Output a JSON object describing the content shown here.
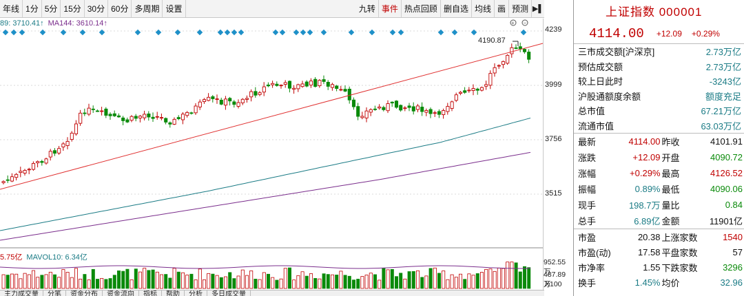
{
  "toolbar": {
    "left": [
      "年线",
      "1分",
      "5分",
      "15分",
      "30分",
      "60分",
      "多周期",
      "设置"
    ],
    "right": [
      "九转",
      "事件",
      "热点回顾",
      "删自选",
      "均线",
      "画",
      "预测"
    ]
  },
  "legend": {
    "ma_a": "89: 3710.41↑",
    "ma144": "MA144: 3610.14↑"
  },
  "volume_legend": {
    "vol": "5.75亿",
    "mavol10": "MAVOL10: 6.34亿"
  },
  "peak_label": "4190.87",
  "price_axis": [
    "4239",
    "3999",
    "3756",
    "3515"
  ],
  "volume_axis": [
    "952.55万",
    "487.89万",
    "X100"
  ],
  "bottom_tabs": [
    "主力成交量",
    "分笔",
    "资金分布",
    "资金流向",
    "指标",
    "帮助",
    "分析",
    "多日成交量"
  ],
  "index": {
    "title": "上证指数 000001",
    "price": "4114.00",
    "change": "+12.09",
    "pct": "+0.29%"
  },
  "turnover": [
    {
      "label": "三市成交额[沪深京]",
      "value": "2.73万亿"
    },
    {
      "label": "预估成交额",
      "value": "2.73万亿"
    },
    {
      "label": "较上日此时",
      "value": "-3243亿"
    },
    {
      "label": "沪股通额度余额",
      "value": "额度充足"
    },
    {
      "label": "总市值",
      "value": "67.21万亿"
    },
    {
      "label": "流通市值",
      "value": "63.03万亿"
    }
  ],
  "quote": [
    {
      "l1": "最新",
      "v1": "4114.00",
      "c1": "red",
      "l2": "昨收",
      "v2": "4101.91",
      "c2": "dark"
    },
    {
      "l1": "涨跌",
      "v1": "+12.09",
      "c1": "red",
      "l2": "开盘",
      "v2": "4090.72",
      "c2": "green"
    },
    {
      "l1": "涨幅",
      "v1": "+0.29%",
      "c1": "red",
      "l2": "最高",
      "v2": "4126.52",
      "c2": "red"
    },
    {
      "l1": "振幅",
      "v1": "0.89%",
      "c1": "teal",
      "l2": "最低",
      "v2": "4090.06",
      "c2": "green"
    },
    {
      "l1": "现手",
      "v1": "198.7万",
      "c1": "teal",
      "l2": "量比",
      "v2": "0.84",
      "c2": "green"
    },
    {
      "l1": "总手",
      "v1": "6.89亿",
      "c1": "teal",
      "l2": "金额",
      "v2": "11901亿",
      "c2": "dark"
    }
  ],
  "stats": [
    {
      "l1": "市盈",
      "v1": "20.38",
      "c1": "dark",
      "l2": "上涨家数",
      "v2": "1540",
      "c2": "red"
    },
    {
      "l1": "市盈(动)",
      "v1": "17.58",
      "c1": "dark",
      "l2": "平盘家数",
      "v2": "57",
      "c2": "dark"
    },
    {
      "l1": "市净率",
      "v1": "1.55",
      "c1": "dark",
      "l2": "下跌家数",
      "v2": "3296",
      "c2": "green"
    },
    {
      "l1": "换手",
      "v1": "1.45%",
      "c1": "teal",
      "l2": "均价",
      "v2": "32.96",
      "c2": "teal"
    }
  ],
  "colors": {
    "up": "#c00000",
    "down": "#0a8a0a",
    "ma_teal": "#1a7b85",
    "ma_purple": "#7a2d8c",
    "event_marker": "#1e90c8"
  }
}
